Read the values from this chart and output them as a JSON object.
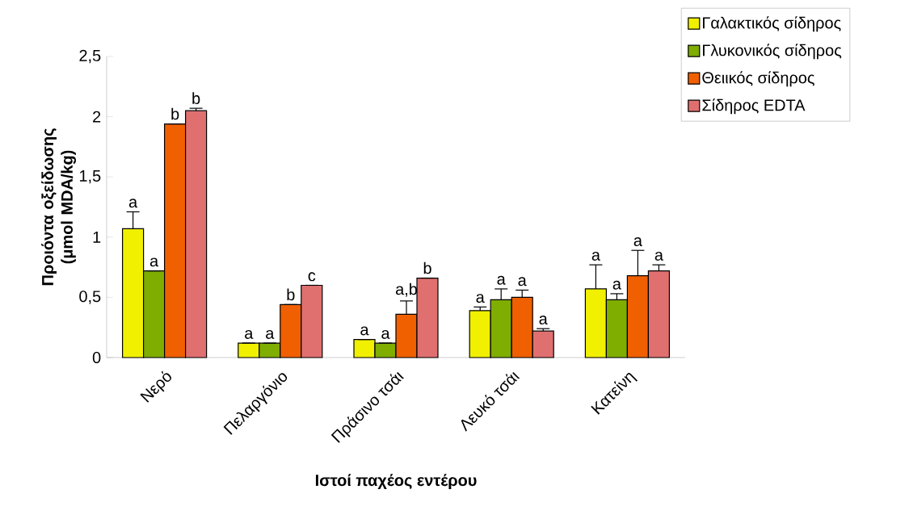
{
  "chart_data": {
    "type": "bar",
    "xlabel": "Ιστοί παχέος εντέρου",
    "ylabel": "Προιόντα οξείδωσης (μmol MDA/kg)",
    "categories": [
      "Νερό",
      "Πελαργόνιο",
      "Πράσινο τσάι",
      "Λευκό τσάι",
      "Κατείνη"
    ],
    "series": [
      {
        "name": "Γαλακτικός σίδηρος",
        "color": "#f0f000",
        "values": [
          1.07,
          0.12,
          0.15,
          0.39,
          0.57
        ],
        "errors": [
          0.14,
          null,
          null,
          0.03,
          0.2
        ],
        "value_labels": [
          "a",
          "a",
          "a",
          "a",
          "a"
        ]
      },
      {
        "name": "Γλυκονικός σίδηρος",
        "color": "#7fad00",
        "values": [
          0.72,
          0.12,
          0.12,
          0.48,
          0.48
        ],
        "errors": [
          null,
          null,
          null,
          0.09,
          0.05
        ],
        "value_labels": [
          "a",
          "a",
          "a",
          "a",
          "a"
        ]
      },
      {
        "name": "Θειικός σίδηρος",
        "color": "#f06000",
        "values": [
          1.94,
          0.44,
          0.36,
          0.5,
          0.68
        ],
        "errors": [
          null,
          null,
          0.11,
          0.06,
          0.21
        ],
        "value_labels": [
          "b",
          "b",
          "a,b",
          "a",
          "a"
        ]
      },
      {
        "name": "Σίδηρος EDTA",
        "color": "#e07070",
        "values": [
          2.05,
          0.6,
          0.66,
          0.22,
          0.72
        ],
        "errors": [
          0.02,
          null,
          null,
          0.02,
          0.05
        ],
        "value_labels": [
          "b",
          "c",
          "b",
          "a",
          "a"
        ]
      }
    ],
    "ylim": [
      0,
      2.5
    ],
    "yticks": [
      0,
      {
        "value": 0.5,
        "label": "0,5"
      },
      1,
      {
        "value": 1.5,
        "label": "1,5"
      },
      2,
      {
        "value": 2.5,
        "label": "2,5"
      }
    ],
    "grid": false,
    "legend": "top right"
  }
}
